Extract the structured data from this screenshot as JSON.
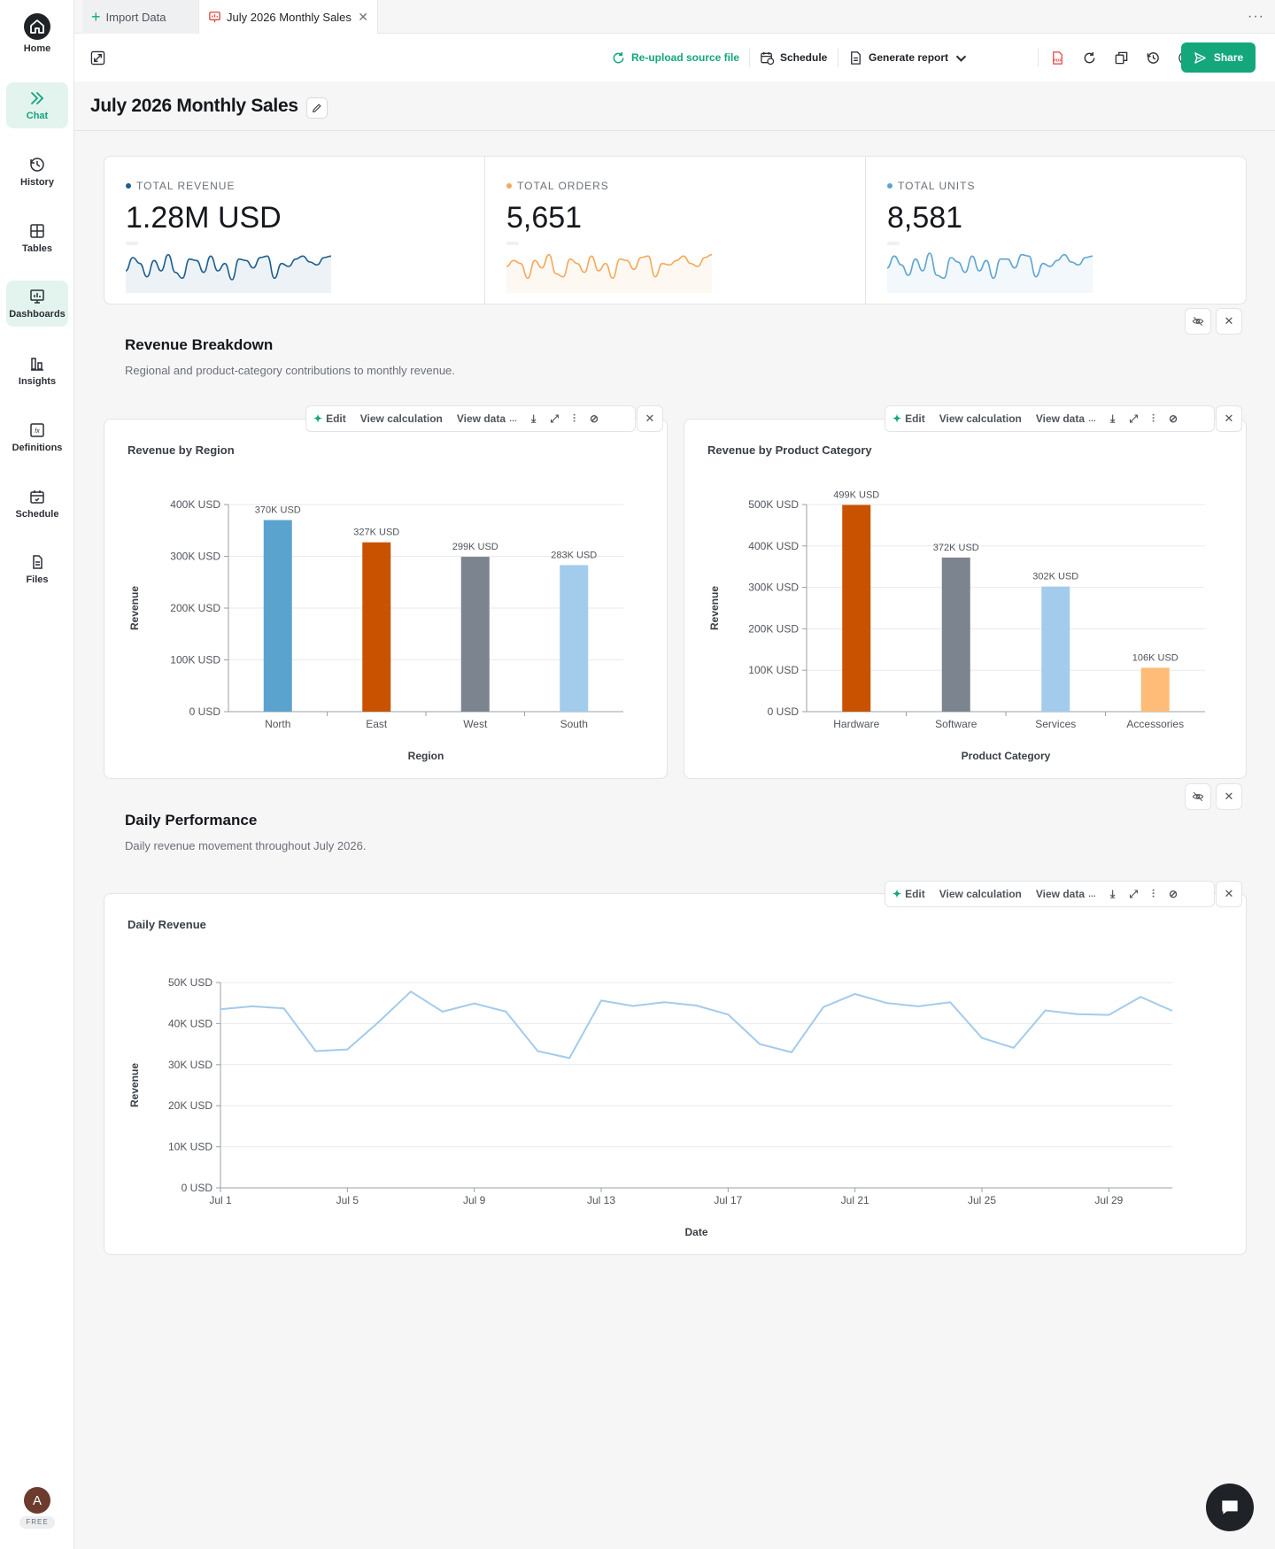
{
  "sidebar": {
    "items": [
      {
        "label": "Home",
        "icon": "home-icon"
      },
      {
        "label": "Chat",
        "icon": "chevrons-right-icon"
      },
      {
        "label": "History",
        "icon": "history-icon"
      },
      {
        "label": "Tables",
        "icon": "table-icon"
      },
      {
        "label": "Dashboards",
        "icon": "dashboard-icon"
      },
      {
        "label": "Insights",
        "icon": "insights-icon"
      },
      {
        "label": "Definitions",
        "icon": "formula-icon"
      },
      {
        "label": "Schedule",
        "icon": "calendar-icon"
      },
      {
        "label": "Files",
        "icon": "file-icon"
      }
    ],
    "avatar_initial": "A",
    "plan_badge": "FREE"
  },
  "tabs": [
    {
      "label": "Import Data"
    },
    {
      "label": "July 2026 Monthly Sales"
    }
  ],
  "toolbar": {
    "reupload": "Re-upload source file",
    "schedule": "Schedule",
    "generate_report": "Generate report",
    "share": "Share",
    "accent": "#14a77c"
  },
  "page": {
    "title": "July 2026 Monthly Sales"
  },
  "kpis": [
    {
      "label": "TOTAL REVENUE",
      "value": "1.28M USD",
      "color": "#1c5f8f"
    },
    {
      "label": "TOTAL ORDERS",
      "value": "5,651",
      "color": "#f4a95a"
    },
    {
      "label": "TOTAL UNITS",
      "value": "8,581",
      "color": "#5ea5d0"
    }
  ],
  "sections": [
    {
      "title": "Revenue Breakdown",
      "subtitle": "Regional and product-category contributions to monthly revenue."
    },
    {
      "title": "Daily Performance",
      "subtitle": "Daily revenue movement throughout July 2026."
    }
  ],
  "card_tools": {
    "edit": "Edit",
    "view_calc": "View calculation",
    "view_data": "View data"
  },
  "chart_data": [
    {
      "type": "bar",
      "title": "Revenue by Region",
      "xlabel": "Region",
      "ylabel": "Revenue",
      "categories": [
        "North",
        "East",
        "West",
        "South"
      ],
      "values": [
        370000,
        327000,
        299000,
        283000
      ],
      "value_labels": [
        "370K USD",
        "327K USD",
        "299K USD",
        "283K USD"
      ],
      "colors": [
        "#5ba3cf",
        "#c85200",
        "#7b848f",
        "#a3cbeb"
      ],
      "ylim": [
        0,
        400000
      ],
      "yticks": [
        0,
        100000,
        200000,
        300000,
        400000
      ],
      "ytick_labels": [
        "0 USD",
        "100K USD",
        "200K USD",
        "300K USD",
        "400K USD"
      ],
      "grid": true
    },
    {
      "type": "bar",
      "title": "Revenue by Product Category",
      "xlabel": "Product Category",
      "ylabel": "Revenue",
      "categories": [
        "Hardware",
        "Software",
        "Services",
        "Accessories"
      ],
      "values": [
        499000,
        372000,
        302000,
        106000
      ],
      "value_labels": [
        "499K USD",
        "372K USD",
        "302K USD",
        "106K USD"
      ],
      "colors": [
        "#c85200",
        "#7b848f",
        "#a3cbeb",
        "#ffbc79"
      ],
      "ylim": [
        0,
        500000
      ],
      "yticks": [
        0,
        100000,
        200000,
        300000,
        400000,
        500000
      ],
      "ytick_labels": [
        "0 USD",
        "100K USD",
        "200K USD",
        "300K USD",
        "400K USD",
        "500K USD"
      ],
      "grid": true
    },
    {
      "type": "line",
      "title": "Daily Revenue",
      "xlabel": "Date",
      "ylabel": "Revenue",
      "x": [
        "Jul 1",
        "Jul 2",
        "Jul 3",
        "Jul 4",
        "Jul 5",
        "Jul 6",
        "Jul 7",
        "Jul 8",
        "Jul 9",
        "Jul 10",
        "Jul 11",
        "Jul 12",
        "Jul 13",
        "Jul 14",
        "Jul 15",
        "Jul 16",
        "Jul 17",
        "Jul 18",
        "Jul 19",
        "Jul 20",
        "Jul 21",
        "Jul 22",
        "Jul 23",
        "Jul 24",
        "Jul 25",
        "Jul 26",
        "Jul 27",
        "Jul 28",
        "Jul 29",
        "Jul 30",
        "Jul 31"
      ],
      "values": [
        43500,
        44200,
        43700,
        33300,
        33700,
        40500,
        47800,
        42900,
        44900,
        42900,
        33300,
        31600,
        45600,
        44300,
        45200,
        44400,
        42200,
        35000,
        33000,
        44000,
        47200,
        45000,
        44200,
        45200,
        36500,
        34100,
        43200,
        42300,
        42100,
        46500,
        43100
      ],
      "xtick_labels": [
        "Jul 1",
        "Jul 5",
        "Jul 9",
        "Jul 13",
        "Jul 17",
        "Jul 21",
        "Jul 25",
        "Jul 29"
      ],
      "ylim": [
        0,
        50000
      ],
      "yticks": [
        0,
        10000,
        20000,
        30000,
        40000,
        50000
      ],
      "ytick_labels": [
        "0 USD",
        "10K USD",
        "20K USD",
        "30K USD",
        "40K USD",
        "50K USD"
      ],
      "color": "#a3cbeb",
      "grid": true
    }
  ],
  "sparklines": {
    "revenue": [
      30,
      48,
      40,
      22,
      44,
      30,
      52,
      28,
      20,
      46,
      44,
      28,
      50,
      30,
      40,
      18,
      46,
      44,
      34,
      48,
      50,
      20,
      40,
      36,
      46,
      50,
      42,
      38,
      48,
      50
    ],
    "orders": [
      36,
      44,
      40,
      20,
      44,
      34,
      52,
      26,
      22,
      46,
      40,
      28,
      50,
      30,
      40,
      20,
      46,
      44,
      32,
      48,
      50,
      22,
      40,
      38,
      44,
      50,
      40,
      36,
      48,
      52
    ],
    "units": [
      34,
      50,
      38,
      24,
      46,
      30,
      54,
      24,
      20,
      48,
      42,
      28,
      50,
      30,
      44,
      20,
      46,
      46,
      34,
      52,
      50,
      22,
      40,
      36,
      44,
      52,
      42,
      38,
      48,
      50
    ]
  }
}
